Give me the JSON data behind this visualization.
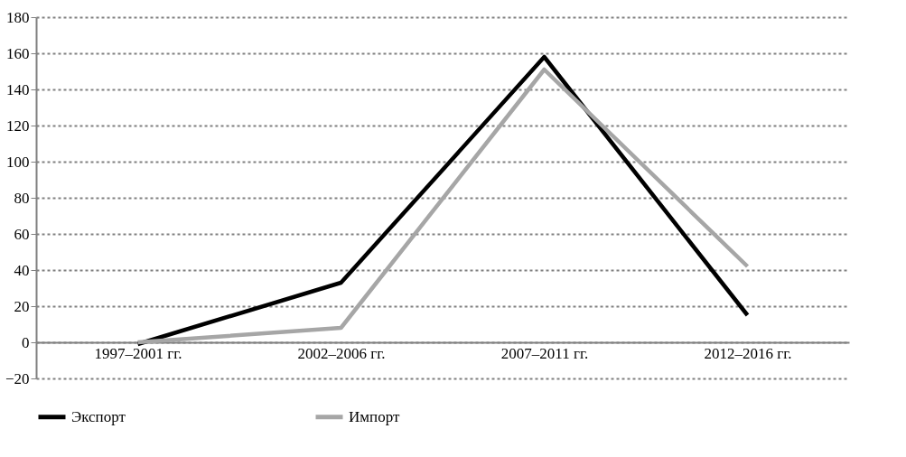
{
  "chart_data": {
    "type": "line",
    "categories": [
      "1997–2001 гг.",
      "2002–2006 гг.",
      "2007–2011 гг.",
      "2012–2016 гг."
    ],
    "series": [
      {
        "name": "Экспорт",
        "color": "#000000",
        "values": [
          -1,
          33,
          158,
          15
        ]
      },
      {
        "name": "Импорт",
        "color": "#a6a6a6",
        "values": [
          0,
          8,
          151,
          42
        ]
      }
    ],
    "ylim": [
      -20,
      180
    ],
    "yticks": [
      -20,
      0,
      20,
      40,
      60,
      80,
      100,
      120,
      140,
      160,
      180
    ],
    "grid": "y",
    "legend": "bottom",
    "marker": "none",
    "line_style": "solid"
  }
}
